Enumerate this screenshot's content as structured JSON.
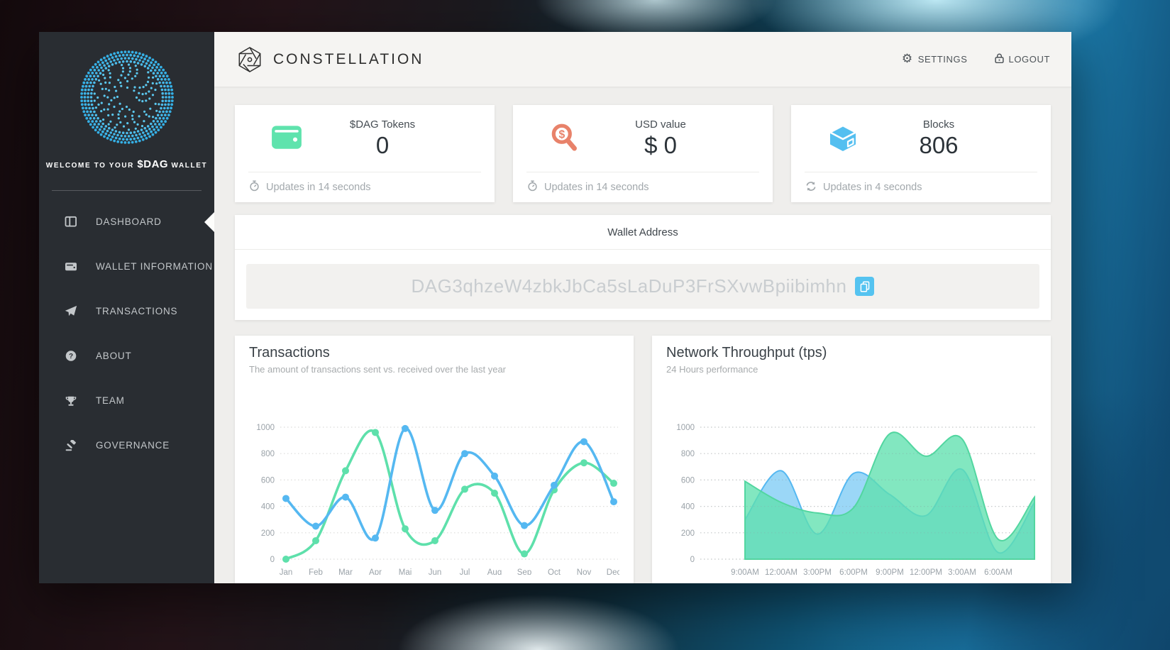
{
  "sidebar": {
    "welcome_prefix": "WELCOME TO YOUR",
    "welcome_token": "$DAG",
    "welcome_suffix": "WALLET",
    "logo": "dotted-sphere-logo",
    "items": [
      {
        "label": "DASHBOARD",
        "icon": "dashboard-icon",
        "active": true
      },
      {
        "label": "WALLET INFORMATION",
        "icon": "wallet-icon",
        "active": false
      },
      {
        "label": "TRANSACTIONS",
        "icon": "paper-plane-icon",
        "active": false
      },
      {
        "label": "ABOUT",
        "icon": "question-circle-icon",
        "active": false
      },
      {
        "label": "TEAM",
        "icon": "trophy-icon",
        "active": false
      },
      {
        "label": "GOVERNANCE",
        "icon": "gavel-icon",
        "active": false
      }
    ]
  },
  "header": {
    "brand": "CONSTELLATION",
    "brand_icon": "hexagon-aperture-logo",
    "settings_label": "SETTINGS",
    "settings_icon": "gear-icon",
    "logout_label": "LOGOUT",
    "logout_icon": "lock-icon"
  },
  "stat_cards": [
    {
      "title": "$DAG Tokens",
      "value": "0",
      "icon": "wallet-icon",
      "icon_color": "#5fe3ad",
      "footer": "Updates in 14 seconds",
      "footer_icon": "stopwatch-icon"
    },
    {
      "title": "USD value",
      "value": "$ 0",
      "icon": "usd-search-icon",
      "icon_color": "#e8826a",
      "footer": "Updates in 14 seconds",
      "footer_icon": "stopwatch-icon"
    },
    {
      "title": "Blocks",
      "value": "806",
      "icon": "cube-icon",
      "icon_color": "#54bff0",
      "footer": "Updates in 4 seconds",
      "footer_icon": "sync-icon"
    }
  ],
  "wallet_address": {
    "title": "Wallet Address",
    "address": "DAG3qhzeW4zbkJbCa5sLaDuP3FrSXvwBpiibimhn",
    "copy_icon": "copy-icon",
    "copy_button_color": "#55c3f0"
  },
  "chart_data": [
    {
      "type": "line",
      "title": "Transactions",
      "subtitle": "The amount of transactions sent vs. received over the last year",
      "categories": [
        "Jan",
        "Feb",
        "Mar",
        "Apr",
        "Mai",
        "Jun",
        "Jul",
        "Aug",
        "Sep",
        "Oct",
        "Nov",
        "Dec"
      ],
      "series": [
        {
          "name": "received",
          "color": "#5ee0ab",
          "values": [
            0,
            140,
            670,
            960,
            230,
            140,
            530,
            500,
            40,
            525,
            730,
            575
          ]
        },
        {
          "name": "sent",
          "color": "#55b8f1",
          "values": [
            460,
            250,
            470,
            160,
            990,
            370,
            800,
            630,
            255,
            560,
            890,
            435
          ]
        }
      ],
      "ylim": [
        0,
        1000
      ],
      "yticks": [
        0,
        200,
        400,
        600,
        800,
        1000
      ],
      "grid": "dotted-horizontal",
      "legend": "none",
      "point_markers": true
    },
    {
      "type": "area",
      "title": "Network Throughput (tps)",
      "subtitle": "24 Hours performance",
      "x_labels": [
        "9:00AM",
        "12:00AM",
        "3:00PM",
        "6:00PM",
        "9:00PM",
        "12:00PM",
        "3:00AM",
        "6:00AM"
      ],
      "series": [
        {
          "name": "throughput-blue",
          "color": "#55b8f1",
          "fill": "#7fccf5",
          "values": [
            300,
            670,
            190,
            650,
            490,
            330,
            680,
            50,
            430
          ]
        },
        {
          "name": "throughput-green",
          "color": "#52d6a0",
          "fill": "#5fe0ae",
          "values": [
            590,
            430,
            350,
            390,
            950,
            780,
            910,
            150,
            470
          ]
        }
      ],
      "ylim": [
        0,
        1000
      ],
      "yticks": [
        0,
        200,
        400,
        600,
        800,
        1000
      ],
      "grid": "dotted-horizontal",
      "legend": "none",
      "point_markers": false,
      "unlabeled_endpoint": true
    }
  ]
}
